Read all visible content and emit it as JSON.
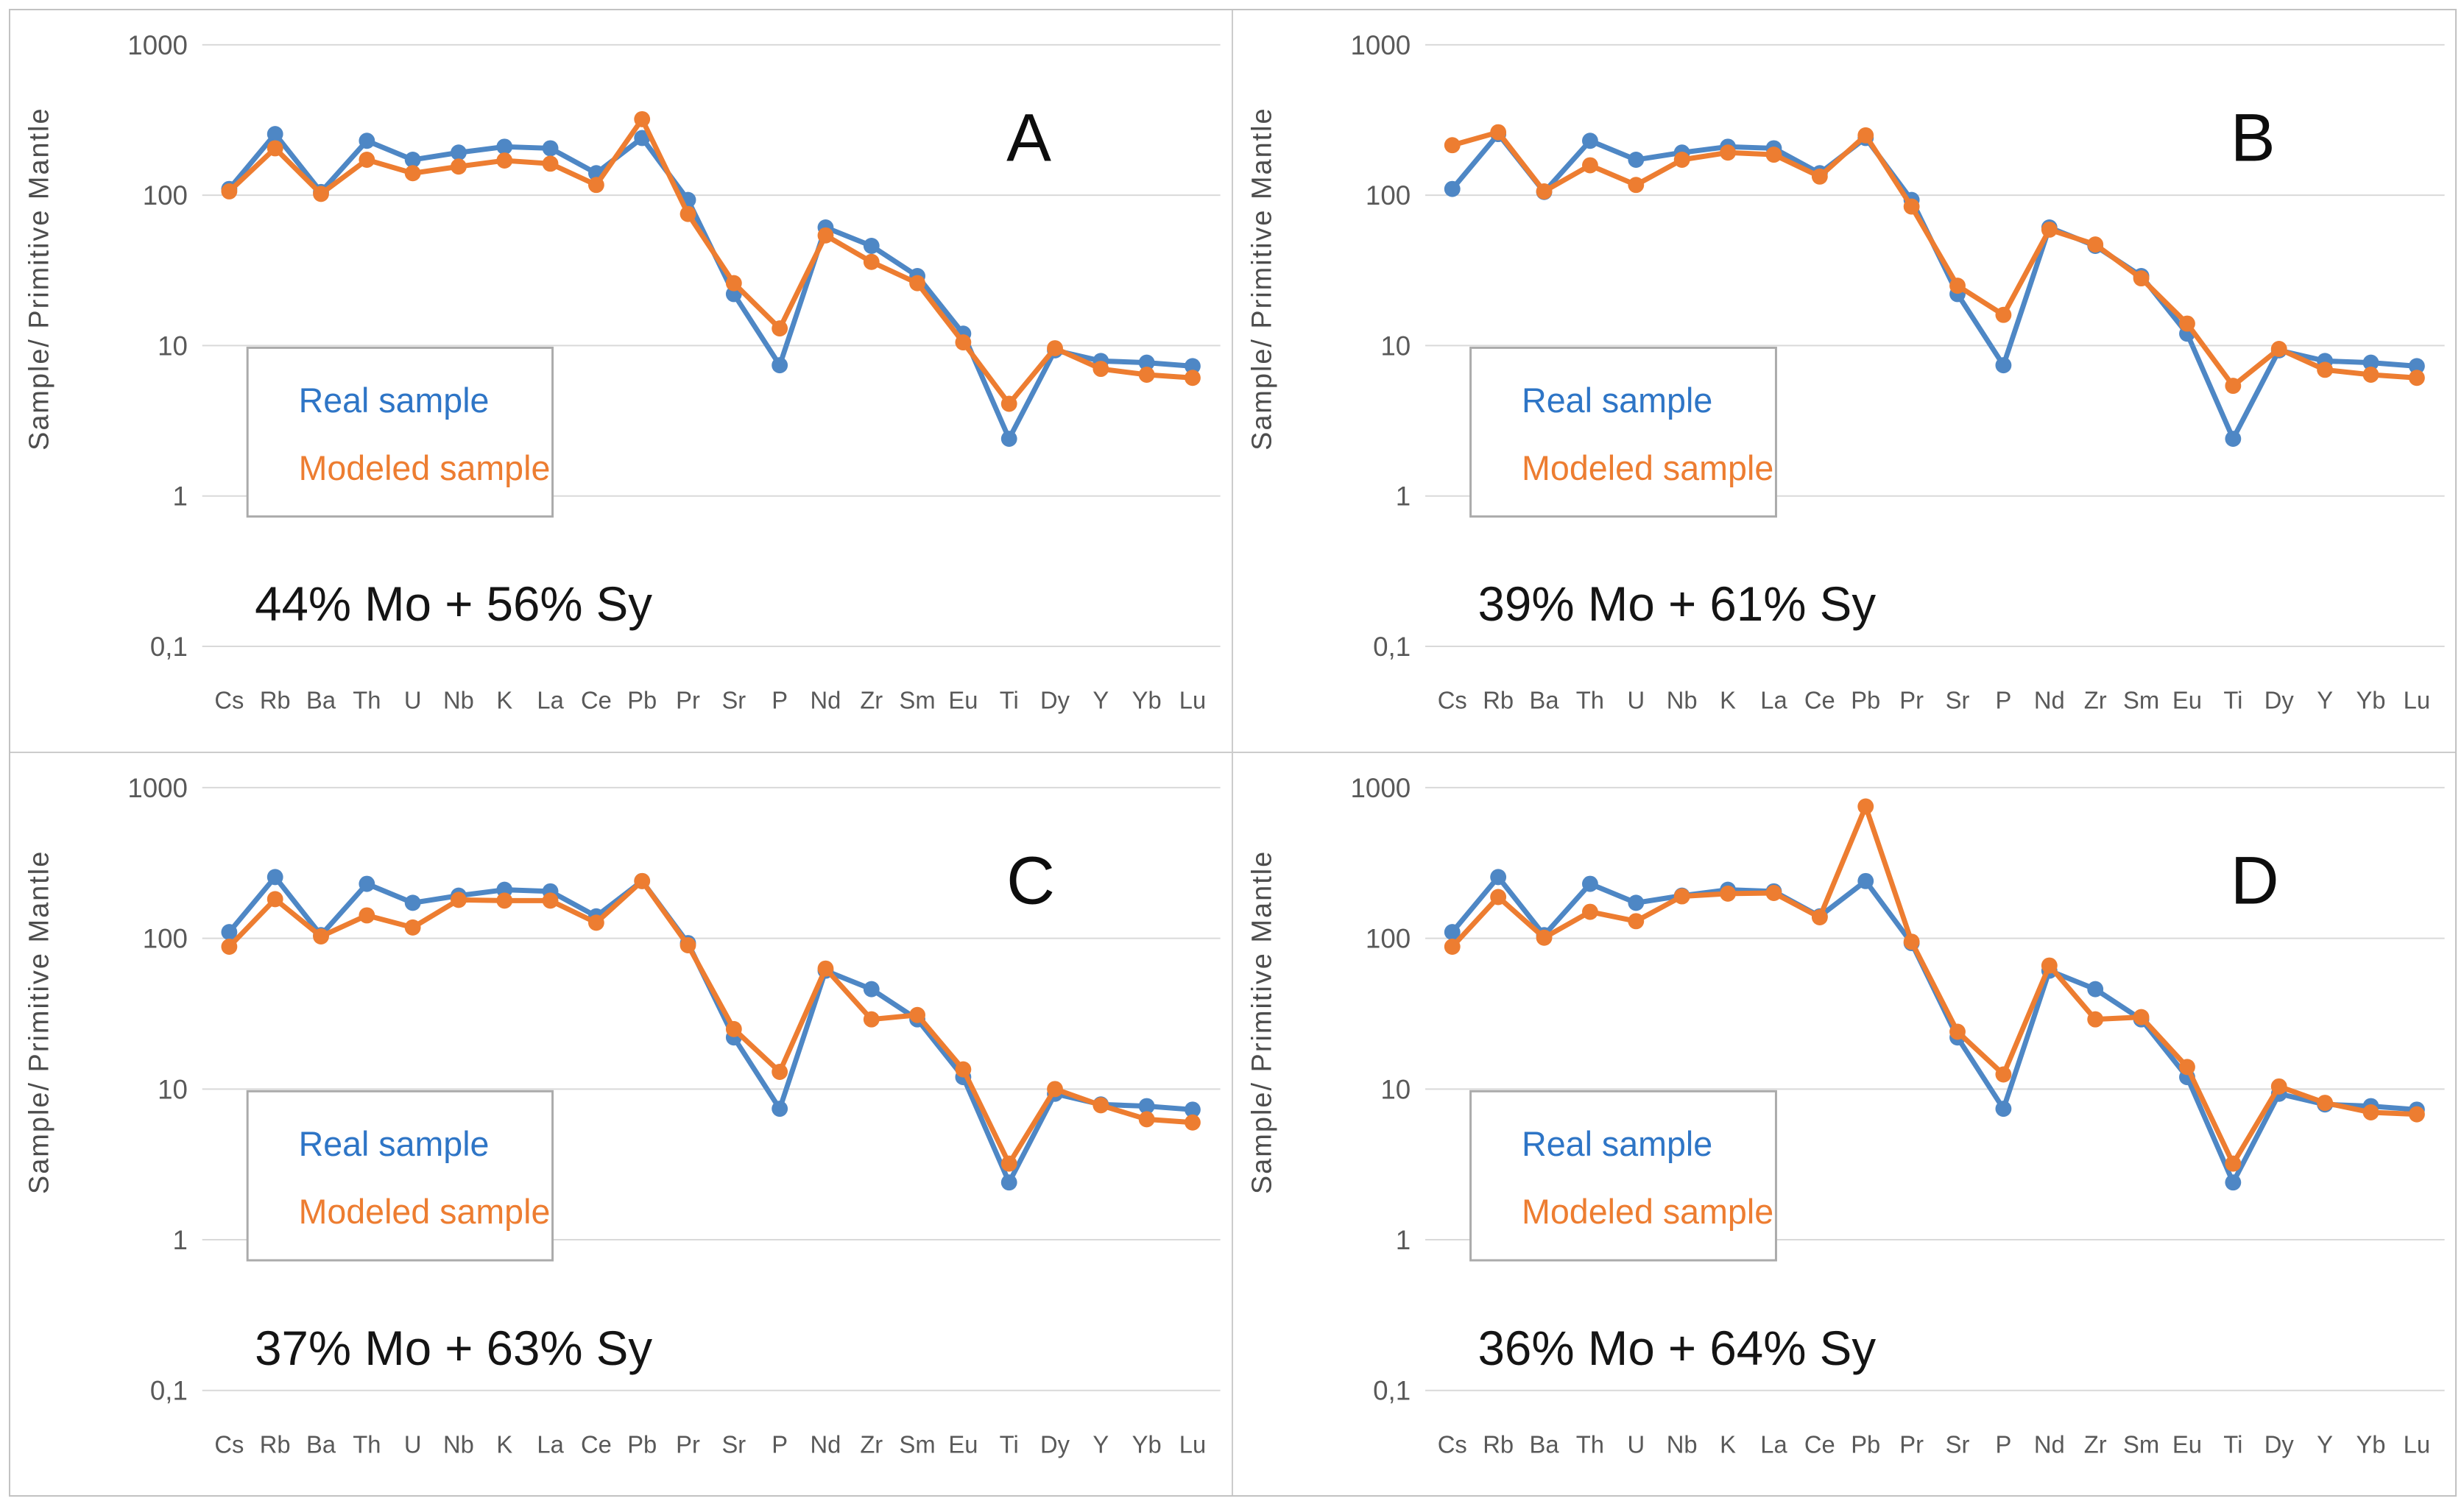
{
  "figure": {
    "y_axis_title": "Sample/ Primitive Mantle",
    "y_tick_labels": [
      "1000",
      "100",
      "10",
      "1",
      "0,1"
    ],
    "colors": {
      "real_line": "#4e87c5",
      "modeled_line": "#ed7d31",
      "legend_real_text": "#2e75c6",
      "legend_modeled_text": "#ed7d31",
      "gridline": "#d9d9d9",
      "axis_text": "#595959",
      "legend_border": "#ababab",
      "panel_border": "#c2c2c2"
    }
  },
  "chart_data": [
    {
      "type": "line",
      "panel_label": "A",
      "annotation": "44% Mo + 56% Sy",
      "ylabel": "Sample/ Primitive Mantle",
      "y_scale": "log",
      "ylim": [
        0.1,
        1000
      ],
      "grid": "horizontal",
      "legend_position": "inside-left",
      "categories": [
        "Cs",
        "Rb",
        "Ba",
        "Th",
        "U",
        "Nb",
        "K",
        "La",
        "Ce",
        "Pb",
        "Pr",
        "Sr",
        "P",
        "Nd",
        "Zr",
        "Sm",
        "Eu",
        "Ti",
        "Dy",
        "Y",
        "Yb",
        "Lu"
      ],
      "series": [
        {
          "name": "Real sample",
          "color": "#4e87c5",
          "values": [
            110,
            255,
            105,
            230,
            172,
            192,
            210,
            205,
            140,
            240,
            93,
            22,
            7.4,
            61,
            46,
            29,
            12,
            2.4,
            9.3,
            7.9,
            7.7,
            7.3
          ]
        },
        {
          "name": "Modeled sample",
          "color": "#ed7d31",
          "values": [
            106,
            205,
            102,
            172,
            140,
            155,
            170,
            162,
            117,
            320,
            75,
            26,
            13,
            54,
            36,
            26,
            10.5,
            4.1,
            9.6,
            7.0,
            6.4,
            6.1
          ]
        }
      ]
    },
    {
      "type": "line",
      "panel_label": "B",
      "annotation": "39% Mo + 61% Sy",
      "ylabel": "Sample/ Primitive Mantle",
      "y_scale": "log",
      "ylim": [
        0.1,
        1000
      ],
      "grid": "horizontal",
      "legend_position": "inside-left",
      "categories": [
        "Cs",
        "Rb",
        "Ba",
        "Th",
        "U",
        "Nb",
        "K",
        "La",
        "Ce",
        "Pb",
        "Pr",
        "Sr",
        "P",
        "Nd",
        "Zr",
        "Sm",
        "Eu",
        "Ti",
        "Dy",
        "Y",
        "Yb",
        "Lu"
      ],
      "series": [
        {
          "name": "Real sample",
          "color": "#4e87c5",
          "values": [
            110,
            255,
            105,
            230,
            172,
            192,
            210,
            205,
            140,
            240,
            93,
            22,
            7.4,
            61,
            46,
            29,
            12,
            2.4,
            9.3,
            7.9,
            7.7,
            7.3
          ]
        },
        {
          "name": "Modeled sample",
          "color": "#ed7d31",
          "values": [
            215,
            262,
            106,
            158,
            117,
            172,
            192,
            186,
            133,
            250,
            84,
            25,
            16,
            59,
            47,
            28,
            14,
            5.4,
            9.5,
            6.9,
            6.4,
            6.1
          ]
        }
      ]
    },
    {
      "type": "line",
      "panel_label": "C",
      "annotation": "37% Mo + 63% Sy",
      "ylabel": "Sample/ Primitive Mantle",
      "y_scale": "log",
      "ylim": [
        0.1,
        1000
      ],
      "grid": "horizontal",
      "legend_position": "inside-left",
      "categories": [
        "Cs",
        "Rb",
        "Ba",
        "Th",
        "U",
        "Nb",
        "K",
        "La",
        "Ce",
        "Pb",
        "Pr",
        "Sr",
        "P",
        "Nd",
        "Zr",
        "Sm",
        "Eu",
        "Ti",
        "Dy",
        "Y",
        "Yb",
        "Lu"
      ],
      "series": [
        {
          "name": "Real sample",
          "color": "#4e87c5",
          "values": [
            110,
            255,
            105,
            230,
            172,
            192,
            210,
            205,
            140,
            240,
            93,
            22,
            7.4,
            61,
            46,
            29,
            12,
            2.4,
            9.3,
            7.9,
            7.7,
            7.3
          ]
        },
        {
          "name": "Modeled sample",
          "color": "#ed7d31",
          "values": [
            88,
            182,
            103,
            142,
            118,
            180,
            178,
            178,
            127,
            240,
            90,
            25,
            13,
            63,
            29,
            31,
            13.5,
            3.2,
            10,
            7.8,
            6.3,
            6.0
          ]
        }
      ]
    },
    {
      "type": "line",
      "panel_label": "D",
      "annotation": "36% Mo + 64% Sy",
      "ylabel": "Sample/ Primitive Mantle",
      "y_scale": "log",
      "ylim": [
        0.1,
        1000
      ],
      "grid": "horizontal",
      "legend_position": "inside-left",
      "categories": [
        "Cs",
        "Rb",
        "Ba",
        "Th",
        "U",
        "Nb",
        "K",
        "La",
        "Ce",
        "Pb",
        "Pr",
        "Sr",
        "P",
        "Nd",
        "Zr",
        "Sm",
        "Eu",
        "Ti",
        "Dy",
        "Y",
        "Yb",
        "Lu"
      ],
      "series": [
        {
          "name": "Real sample",
          "color": "#4e87c5",
          "values": [
            110,
            255,
            105,
            230,
            172,
            192,
            210,
            205,
            140,
            240,
            93,
            22,
            7.4,
            61,
            46,
            29,
            12,
            2.4,
            9.3,
            7.9,
            7.7,
            7.3
          ]
        },
        {
          "name": "Modeled sample",
          "color": "#ed7d31",
          "values": [
            88,
            188,
            101,
            150,
            130,
            190,
            198,
            200,
            138,
            750,
            95,
            24,
            12.5,
            66,
            29,
            30,
            14,
            3.2,
            10.4,
            8.1,
            7.0,
            6.8
          ]
        }
      ]
    }
  ]
}
